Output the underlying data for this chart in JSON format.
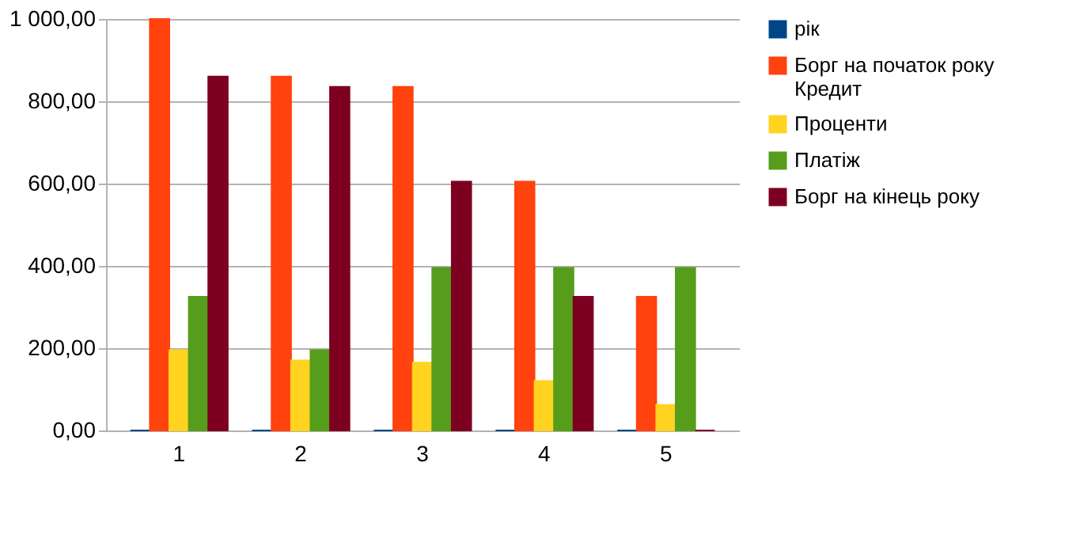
{
  "chart_data": {
    "type": "bar",
    "categories": [
      "1",
      "2",
      "3",
      "4",
      "5"
    ],
    "series": [
      {
        "name": "рік",
        "color": "#004586",
        "values": [
          0,
          0,
          0,
          0,
          0
        ]
      },
      {
        "name": "Борг на початок року\nКредит",
        "color": "#ff420e",
        "values": [
          1000,
          860,
          835,
          605,
          325
        ]
      },
      {
        "name": "Проценти",
        "color": "#ffd320",
        "values": [
          195,
          170,
          165,
          120,
          62
        ]
      },
      {
        "name": "Платіж",
        "color": "#579d1c",
        "values": [
          325,
          195,
          395,
          395,
          395
        ]
      },
      {
        "name": "Борг на кінець року",
        "color": "#7e0021",
        "values": [
          860,
          835,
          605,
          325,
          0
        ]
      }
    ],
    "ylim": [
      0,
      1000
    ],
    "yticks": [
      {
        "value": 0,
        "label": "0,00"
      },
      {
        "value": 200,
        "label": "200,00"
      },
      {
        "value": 400,
        "label": "400,00"
      },
      {
        "value": 600,
        "label": "600,00"
      },
      {
        "value": 800,
        "label": "800,00"
      },
      {
        "value": 1000,
        "label": "1 000,00"
      }
    ],
    "grid": "y",
    "legend": "right"
  }
}
